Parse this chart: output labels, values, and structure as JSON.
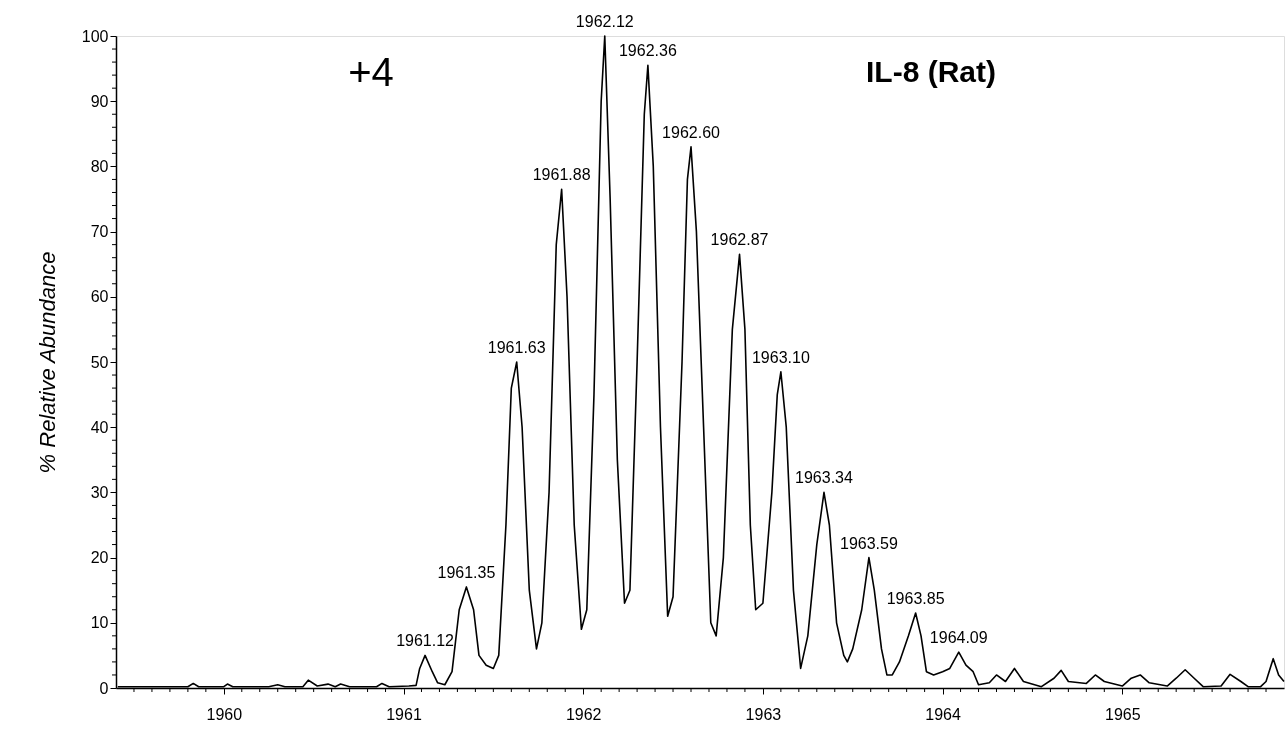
{
  "chart_data": {
    "type": "line",
    "title": "IL-8 (Rat)",
    "ylabel": "% Relative Abundance",
    "annotations": [
      "+4",
      {
        "text": "1961.12",
        "x": 1961.12,
        "y": 5
      },
      {
        "text": "1961.35",
        "x": 1961.35,
        "y": 15.5
      },
      {
        "text": "1961.63",
        "x": 1961.63,
        "y": 50
      },
      {
        "text": "1961.88",
        "x": 1961.88,
        "y": 76.5
      },
      {
        "text": "1962.12",
        "x": 1962.12,
        "y": 100
      },
      {
        "text": "1962.36",
        "x": 1962.36,
        "y": 95.5
      },
      {
        "text": "1962.60",
        "x": 1962.6,
        "y": 83
      },
      {
        "text": "1962.87",
        "x": 1962.87,
        "y": 66.5
      },
      {
        "text": "1963.10",
        "x": 1963.1,
        "y": 48.5
      },
      {
        "text": "1963.34",
        "x": 1963.34,
        "y": 30
      },
      {
        "text": "1963.59",
        "x": 1963.59,
        "y": 20
      },
      {
        "text": "1963.85",
        "x": 1963.85,
        "y": 11.5
      },
      {
        "text": "1964.09",
        "x": 1964.09,
        "y": 5.5
      }
    ],
    "x": [
      1959.41,
      1959.8,
      1959.83,
      1959.86,
      1960.0,
      1960.02,
      1960.05,
      1960.25,
      1960.3,
      1960.34,
      1960.44,
      1960.47,
      1960.52,
      1960.58,
      1960.62,
      1960.65,
      1960.7,
      1960.85,
      1960.88,
      1960.92,
      1961.03,
      1961.07,
      1961.09,
      1961.12,
      1961.16,
      1961.19,
      1961.23,
      1961.27,
      1961.31,
      1961.35,
      1961.39,
      1961.42,
      1961.46,
      1961.5,
      1961.53,
      1961.57,
      1961.6,
      1961.63,
      1961.66,
      1961.7,
      1961.74,
      1961.77,
      1961.81,
      1961.85,
      1961.88,
      1961.91,
      1961.95,
      1961.99,
      1962.02,
      1962.06,
      1962.1,
      1962.12,
      1962.15,
      1962.19,
      1962.23,
      1962.26,
      1962.3,
      1962.34,
      1962.36,
      1962.39,
      1962.43,
      1962.47,
      1962.5,
      1962.55,
      1962.58,
      1962.6,
      1962.63,
      1962.67,
      1962.71,
      1962.74,
      1962.78,
      1962.83,
      1962.87,
      1962.9,
      1962.93,
      1962.96,
      1963.0,
      1963.05,
      1963.08,
      1963.1,
      1963.13,
      1963.17,
      1963.21,
      1963.25,
      1963.3,
      1963.34,
      1963.37,
      1963.41,
      1963.45,
      1963.47,
      1963.5,
      1963.55,
      1963.59,
      1963.62,
      1963.66,
      1963.69,
      1963.72,
      1963.76,
      1963.81,
      1963.85,
      1963.88,
      1963.91,
      1963.95,
      1964.0,
      1964.04,
      1964.09,
      1964.13,
      1964.17,
      1964.2,
      1964.26,
      1964.3,
      1964.35,
      1964.4,
      1964.45,
      1964.55,
      1964.62,
      1964.66,
      1964.7,
      1964.8,
      1964.85,
      1964.9,
      1965.0,
      1965.05,
      1965.1,
      1965.15,
      1965.25,
      1965.3,
      1965.35,
      1965.4,
      1965.45,
      1965.55,
      1965.6,
      1965.66,
      1965.7,
      1965.77,
      1965.8,
      1965.84,
      1965.87,
      1965.9
    ],
    "series": [
      {
        "color": "#000000",
        "values": [
          0.2,
          0.2,
          0.7,
          0.2,
          0.2,
          0.6,
          0.2,
          0.2,
          0.5,
          0.2,
          0.2,
          1.2,
          0.3,
          0.6,
          0.2,
          0.6,
          0.2,
          0.2,
          0.7,
          0.2,
          0.3,
          0.4,
          3,
          5,
          2.5,
          0.8,
          0.5,
          2.5,
          12,
          15.5,
          12,
          5,
          3.5,
          3,
          5,
          25,
          46,
          50,
          40,
          15,
          6,
          10,
          30,
          68,
          76.5,
          60,
          25,
          9,
          12,
          45,
          90,
          100,
          75,
          35,
          13,
          15,
          50,
          88,
          95.5,
          80,
          40,
          11,
          14,
          50,
          78,
          83,
          70,
          40,
          10,
          8,
          20,
          55,
          66.5,
          55,
          25,
          12,
          13,
          30,
          45,
          48.5,
          40,
          15,
          3,
          8,
          22,
          30,
          25,
          10,
          5,
          4,
          6,
          12,
          20,
          15,
          6,
          2,
          2,
          4,
          8,
          11.5,
          8,
          2.5,
          2,
          2.5,
          3,
          5.5,
          3.5,
          2.5,
          0.5,
          0.8,
          2,
          1,
          3,
          1,
          0.2,
          1.5,
          2.7,
          1,
          0.7,
          2,
          1,
          0.3,
          1.5,
          2,
          0.8,
          0.3,
          1.5,
          2.8,
          1.5,
          0.2,
          0.3,
          2.1,
          1,
          0.2,
          0.2,
          1,
          4.5,
          2,
          1
        ]
      }
    ],
    "xlim": [
      1959.4,
      1965.9
    ],
    "xticks": [
      {
        "value": 1959.5,
        "label": null
      },
      {
        "value": 1959.6,
        "label": null
      },
      {
        "value": 1959.7,
        "label": null
      },
      {
        "value": 1959.8,
        "label": null
      },
      {
        "value": 1959.9,
        "label": null
      },
      1960,
      {
        "value": 1960.1,
        "label": null
      },
      {
        "value": 1960.2,
        "label": null
      },
      {
        "value": 1960.3,
        "label": null
      },
      {
        "value": 1960.4,
        "label": null
      },
      {
        "value": 1960.5,
        "label": null
      },
      {
        "value": 1960.6,
        "label": null
      },
      {
        "value": 1960.7,
        "label": null
      },
      {
        "value": 1960.8,
        "label": null
      },
      {
        "value": 1960.9,
        "label": null
      },
      1961,
      {
        "value": 1961.1,
        "label": null
      },
      {
        "value": 1961.2,
        "label": null
      },
      {
        "value": 1961.3,
        "label": null
      },
      {
        "value": 1961.4,
        "label": null
      },
      {
        "value": 1961.5,
        "label": null
      },
      {
        "value": 1961.6,
        "label": null
      },
      {
        "value": 1961.7,
        "label": null
      },
      {
        "value": 1961.8,
        "label": null
      },
      {
        "value": 1961.9,
        "label": null
      },
      1962,
      {
        "value": 1962.1,
        "label": null
      },
      {
        "value": 1962.2,
        "label": null
      },
      {
        "value": 1962.3,
        "label": null
      },
      {
        "value": 1962.4,
        "label": null
      },
      {
        "value": 1962.5,
        "label": null
      },
      {
        "value": 1962.6,
        "label": null
      },
      {
        "value": 1962.7,
        "label": null
      },
      {
        "value": 1962.8,
        "label": null
      },
      {
        "value": 1962.9,
        "label": null
      },
      1963,
      {
        "value": 1963.1,
        "label": null
      },
      {
        "value": 1963.2,
        "label": null
      },
      {
        "value": 1963.3,
        "label": null
      },
      {
        "value": 1963.4,
        "label": null
      },
      {
        "value": 1963.5,
        "label": null
      },
      {
        "value": 1963.6,
        "label": null
      },
      {
        "value": 1963.7,
        "label": null
      },
      {
        "value": 1963.8,
        "label": null
      },
      {
        "value": 1963.9,
        "label": null
      },
      1964,
      {
        "value": 1964.1,
        "label": null
      },
      {
        "value": 1964.2,
        "label": null
      },
      {
        "value": 1964.3,
        "label": null
      },
      {
        "value": 1964.4,
        "label": null
      },
      {
        "value": 1964.5,
        "label": null
      },
      {
        "value": 1964.6,
        "label": null
      },
      {
        "value": 1964.7,
        "label": null
      },
      {
        "value": 1964.8,
        "label": null
      },
      {
        "value": 1964.9,
        "label": null
      },
      1965,
      {
        "value": 1965.1,
        "label": null
      },
      {
        "value": 1965.2,
        "label": null
      },
      {
        "value": 1965.3,
        "label": null
      },
      {
        "value": 1965.4,
        "label": null
      },
      {
        "value": 1965.5,
        "label": null
      },
      {
        "value": 1965.6,
        "label": null
      },
      {
        "value": 1965.7,
        "label": null
      },
      {
        "value": 1965.8,
        "label": null
      }
    ],
    "ylim": [
      0,
      100
    ],
    "yticks": [
      0,
      {
        "value": 2,
        "label": null
      },
      {
        "value": 4,
        "label": null
      },
      {
        "value": 6,
        "label": null
      },
      {
        "value": 8,
        "label": null
      },
      10,
      {
        "value": 12,
        "label": null
      },
      {
        "value": 14,
        "label": null
      },
      {
        "value": 16,
        "label": null
      },
      {
        "value": 18,
        "label": null
      },
      20,
      {
        "value": 22,
        "label": null
      },
      {
        "value": 24,
        "label": null
      },
      {
        "value": 26,
        "label": null
      },
      {
        "value": 28,
        "label": null
      },
      30,
      {
        "value": 32,
        "label": null
      },
      {
        "value": 34,
        "label": null
      },
      {
        "value": 36,
        "label": null
      },
      {
        "value": 38,
        "label": null
      },
      40,
      {
        "value": 42,
        "label": null
      },
      {
        "value": 44,
        "label": null
      },
      {
        "value": 46,
        "label": null
      },
      {
        "value": 48,
        "label": null
      },
      50,
      {
        "value": 52,
        "label": null
      },
      {
        "value": 54,
        "label": null
      },
      {
        "value": 56,
        "label": null
      },
      {
        "value": 58,
        "label": null
      },
      60,
      {
        "value": 62,
        "label": null
      },
      {
        "value": 64,
        "label": null
      },
      {
        "value": 66,
        "label": null
      },
      {
        "value": 68,
        "label": null
      },
      70,
      {
        "value": 72,
        "label": null
      },
      {
        "value": 74,
        "label": null
      },
      {
        "value": 76,
        "label": null
      },
      {
        "value": 78,
        "label": null
      },
      80,
      {
        "value": 82,
        "label": null
      },
      {
        "value": 84,
        "label": null
      },
      {
        "value": 86,
        "label": null
      },
      {
        "value": 88,
        "label": null
      },
      90,
      {
        "value": 92,
        "label": null
      },
      {
        "value": 94,
        "label": null
      },
      {
        "value": 96,
        "label": null
      },
      {
        "value": 98,
        "label": null
      },
      100
    ],
    "grid": false,
    "marker": "none",
    "line_style": "solid"
  }
}
